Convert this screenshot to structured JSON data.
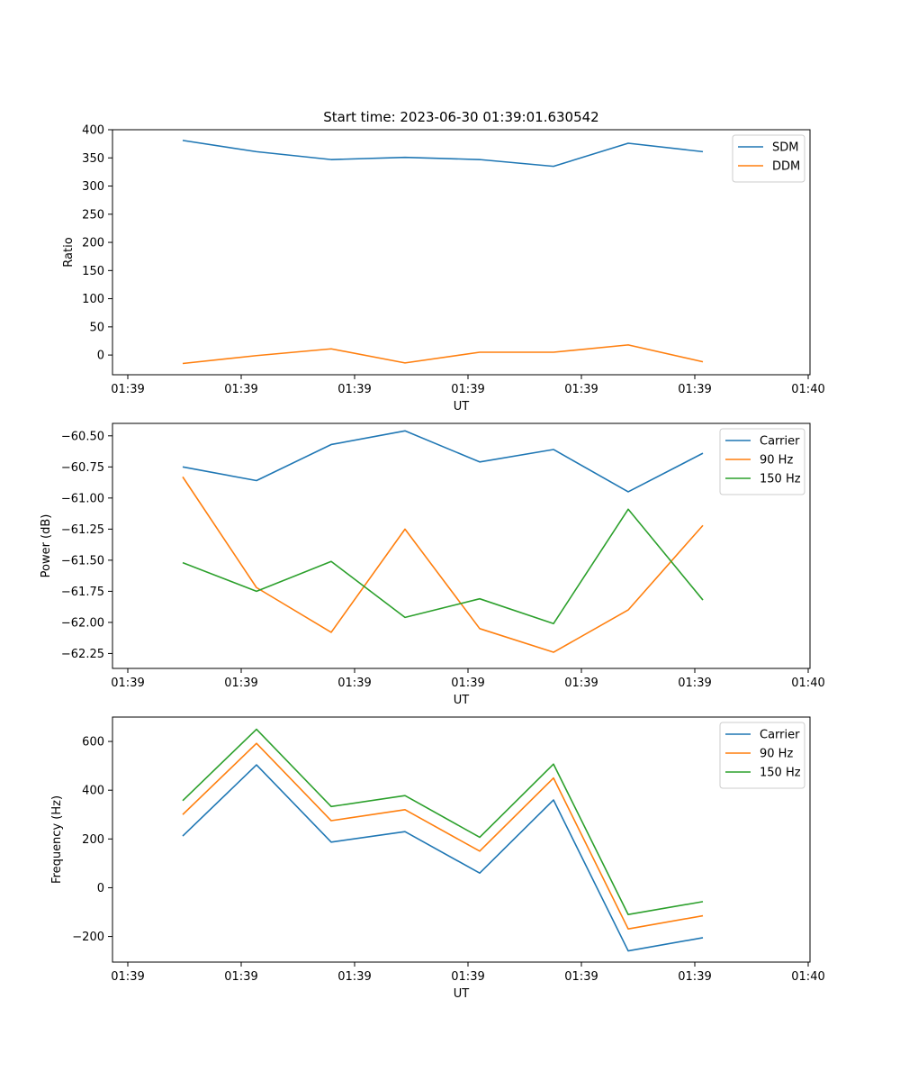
{
  "title": "Start time: 2023-06-30 01:39:01.630542",
  "colors": {
    "blue": "#1f77b4",
    "orange": "#ff7f0e",
    "green": "#2ca02c"
  },
  "chart_data": [
    {
      "type": "line",
      "xlabel": "UT",
      "ylabel": "Ratio",
      "x_tick_labels": [
        "01:39",
        "01:39",
        "01:39",
        "01:39",
        "01:39",
        "01:39",
        "01:40"
      ],
      "y_ticks": [
        0,
        50,
        100,
        150,
        200,
        250,
        300,
        350,
        400
      ],
      "ylim": [
        -35,
        400
      ],
      "legend": "top-right",
      "series": [
        {
          "name": "SDM",
          "color": "#1f77b4",
          "values": [
            381,
            361,
            347,
            351,
            347,
            335,
            376,
            361
          ]
        },
        {
          "name": "DDM",
          "color": "#ff7f0e",
          "values": [
            -15,
            -1,
            11,
            -14,
            5,
            5,
            18,
            -12
          ]
        }
      ]
    },
    {
      "type": "line",
      "xlabel": "UT",
      "ylabel": "Power (dB)",
      "x_tick_labels": [
        "01:39",
        "01:39",
        "01:39",
        "01:39",
        "01:39",
        "01:39",
        "01:40"
      ],
      "y_ticks": [
        -60.5,
        -60.75,
        -61.0,
        -61.25,
        -61.5,
        -61.75,
        -62.0,
        -62.25
      ],
      "y_tick_labels": [
        "−60.50",
        "−60.75",
        "−61.00",
        "−61.25",
        "−61.50",
        "−61.75",
        "−62.00",
        "−62.25"
      ],
      "ylim": [
        -62.37,
        -60.4
      ],
      "legend": "top-right",
      "series": [
        {
          "name": "Carrier",
          "color": "#1f77b4",
          "values": [
            -60.75,
            -60.86,
            -60.57,
            -60.46,
            -60.71,
            -60.61,
            -60.95,
            -60.64
          ]
        },
        {
          "name": "90 Hz",
          "color": "#ff7f0e",
          "values": [
            -60.83,
            -61.72,
            -62.08,
            -61.25,
            -62.05,
            -62.24,
            -61.9,
            -61.22
          ]
        },
        {
          "name": "150 Hz",
          "color": "#2ca02c",
          "values": [
            -61.52,
            -61.75,
            -61.51,
            -61.96,
            -61.81,
            -62.01,
            -61.09,
            -61.82
          ]
        }
      ]
    },
    {
      "type": "line",
      "xlabel": "UT",
      "ylabel": "Frequency (Hz)",
      "x_tick_labels": [
        "01:39",
        "01:39",
        "01:39",
        "01:39",
        "01:39",
        "01:39",
        "01:40"
      ],
      "y_ticks": [
        -200,
        0,
        200,
        400,
        600
      ],
      "y_tick_labels": [
        "−200",
        "0",
        "200",
        "400",
        "600"
      ],
      "ylim": [
        -305,
        700
      ],
      "legend": "top-right",
      "series": [
        {
          "name": "Carrier",
          "color": "#1f77b4",
          "values": [
            212,
            504,
            187,
            230,
            60,
            360,
            -259,
            -205
          ]
        },
        {
          "name": "90 Hz",
          "color": "#ff7f0e",
          "values": [
            300,
            592,
            275,
            320,
            150,
            450,
            -169,
            -115
          ]
        },
        {
          "name": "150 Hz",
          "color": "#2ca02c",
          "values": [
            357,
            650,
            333,
            378,
            207,
            507,
            -110,
            -57
          ]
        }
      ]
    }
  ]
}
